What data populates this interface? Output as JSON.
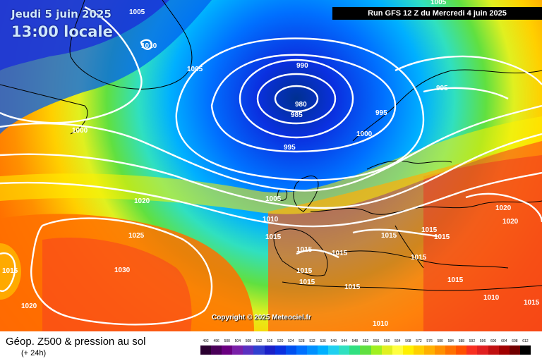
{
  "header": {
    "date": "Jeudi 5 juin 2025",
    "time": "13:00 locale",
    "run": "Run GFS 12 Z du Mercredi 4 juin 2025"
  },
  "map": {
    "copyright": "Copyright © 2025 Meteociel.fr",
    "isobar_labels": [
      "1005",
      "1010",
      "1005",
      "1000",
      "990",
      "980",
      "985",
      "995",
      "995",
      "1000",
      "995",
      "1005",
      "1020",
      "1025",
      "1010",
      "1015",
      "1015",
      "1015",
      "1015",
      "1015",
      "1015",
      "1020",
      "1020",
      "1015",
      "1015",
      "1015",
      "1015",
      "1030",
      "1015",
      "1020",
      "1015",
      "1010",
      "1005",
      "1010",
      "1015"
    ]
  },
  "footer": {
    "title": "Géop. Z500 & pression au sol",
    "subtitle": "(+ 24h)"
  },
  "legend": {
    "labels": [
      "492",
      "496",
      "500",
      "504",
      "508",
      "512",
      "516",
      "520",
      "524",
      "528",
      "532",
      "536",
      "540",
      "544",
      "548",
      "552",
      "556",
      "560",
      "564",
      "568",
      "572",
      "576",
      "580",
      "584",
      "588",
      "592",
      "596",
      "600",
      "604",
      "608",
      "612"
    ],
    "colors": [
      "#2a0030",
      "#4a0058",
      "#6a0080",
      "#7a20a8",
      "#5a30c0",
      "#3040d0",
      "#1a20c8",
      "#0a30e0",
      "#0050f0",
      "#0070ff",
      "#0090ff",
      "#00b0ff",
      "#20d0f0",
      "#30e0c0",
      "#30e080",
      "#60e040",
      "#a0f020",
      "#e0f020",
      "#ffff40",
      "#fff000",
      "#ffd000",
      "#ffb000",
      "#ff9000",
      "#ff7000",
      "#ff5000",
      "#f83020",
      "#e02020",
      "#c01010",
      "#a00000",
      "#700000",
      "#000000"
    ]
  },
  "colors": {
    "isobar": "#ffffff"
  }
}
